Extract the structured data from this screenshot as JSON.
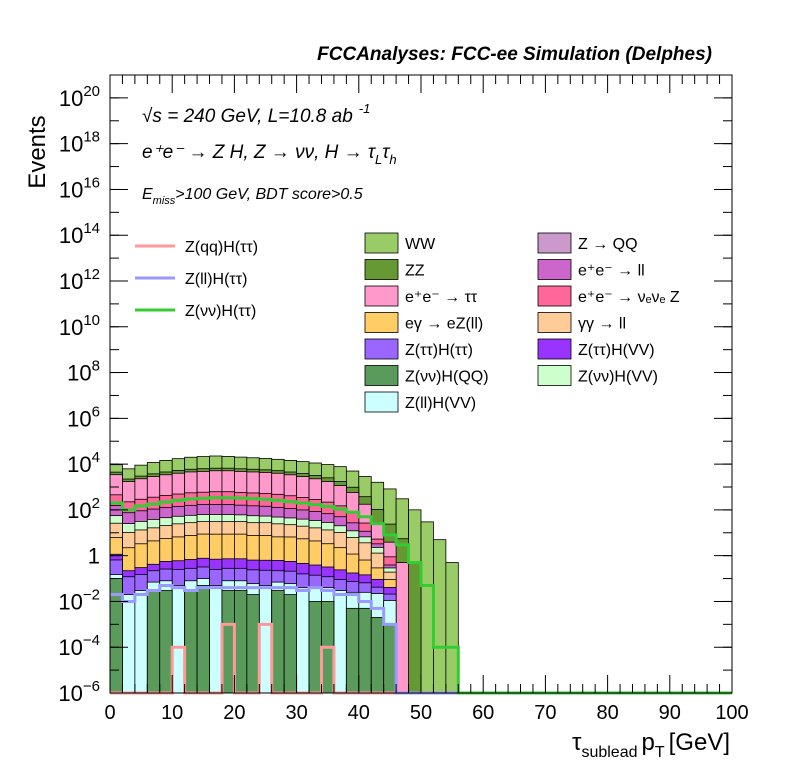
{
  "chart_data": {
    "type": "area",
    "title": "FCCAnalyses: FCC-ee Simulation (Delphes)",
    "xlabel_main": "τ",
    "xlabel_sub": "sublead",
    "xlabel_var": "p",
    "xlabel_var_sub": "T",
    "xlabel_unit": "[GeV]",
    "ylabel": "Events",
    "xlim": [
      0,
      100
    ],
    "ylog": true,
    "ylim": [
      1e-06,
      1e+21
    ],
    "x_tick_labels": [
      "0",
      "10",
      "20",
      "30",
      "40",
      "50",
      "60",
      "70",
      "80",
      "90",
      "100"
    ],
    "y_tick_labels": [
      {
        "base": "10",
        "exp": "−6",
        "value": 1e-06
      },
      {
        "base": "10",
        "exp": "−4",
        "value": 0.0001
      },
      {
        "base": "10",
        "exp": "−2",
        "value": 0.01
      },
      {
        "base": "1",
        "exp": "",
        "value": 1
      },
      {
        "base": "10",
        "exp": "2",
        "value": 100.0
      },
      {
        "base": "10",
        "exp": "4",
        "value": 10000.0
      },
      {
        "base": "10",
        "exp": "6",
        "value": 1000000.0
      },
      {
        "base": "10",
        "exp": "8",
        "value": 100000000.0
      },
      {
        "base": "10",
        "exp": "10",
        "value": 10000000000.0
      },
      {
        "base": "10",
        "exp": "12",
        "value": 1000000000000.0
      },
      {
        "base": "10",
        "exp": "14",
        "value": 100000000000000.0
      },
      {
        "base": "10",
        "exp": "16",
        "value": 1e+16
      },
      {
        "base": "10",
        "exp": "18",
        "value": 1e+18
      },
      {
        "base": "10",
        "exp": "20",
        "value": 1e+20
      }
    ],
    "annotations": {
      "sqrt_s_symbol": "√s",
      "energy_lumi_text": " = 240 GeV, L=10.8 ab",
      "lumi_exp": "-1",
      "process_text": "e⁺e⁻ → Z H, Z → νν, H → τ",
      "process_sub1": "L",
      "process_tau2": "τ",
      "process_sub2": "h",
      "selection_E": "E",
      "selection_sub": "miss",
      "selection_rest": ">100 GeV, BDT score>0.5"
    },
    "bin_edges_step": 2,
    "stacked_series": [
      {
        "name": "Z(νν)H(QQ)",
        "color": "#5a9a5a",
        "values": [
          0.1,
          0,
          0,
          0.03,
          0.03,
          0,
          0.03,
          0.05,
          0,
          0.03,
          0.03,
          0.02,
          0,
          0.03,
          0.02,
          0,
          0.01,
          0.01,
          0,
          0.005,
          0.005,
          0.002,
          0.001,
          0,
          0,
          0,
          0,
          0,
          0,
          0,
          0,
          0,
          0,
          0,
          0,
          0,
          0,
          0,
          0,
          0,
          0,
          0,
          0,
          0,
          0,
          0,
          0,
          0,
          0,
          0
        ]
      },
      {
        "name": "Z(ll)H(VV)",
        "color": "#ccffff",
        "values": [
          0.05,
          0.02,
          0.03,
          0.04,
          0.05,
          0.05,
          0.05,
          0.05,
          0.05,
          0.05,
          0.05,
          0.04,
          0.05,
          0.04,
          0.04,
          0.04,
          0.03,
          0.03,
          0.03,
          0.02,
          0.02,
          0.02,
          0.01,
          0,
          0,
          0,
          0,
          0,
          0,
          0,
          0,
          0,
          0,
          0,
          0,
          0,
          0,
          0,
          0,
          0,
          0,
          0,
          0,
          0,
          0,
          0,
          0,
          0,
          0,
          0
        ]
      },
      {
        "name": "Z(ττ)H(ττ)",
        "color": "#9966ff",
        "values": [
          0.5,
          0.1,
          0.12,
          0.15,
          0.18,
          0.2,
          0.2,
          0.22,
          0.2,
          0.2,
          0.2,
          0.18,
          0.18,
          0.15,
          0.15,
          0.12,
          0.1,
          0.08,
          0.06,
          0.05,
          0.04,
          0.02,
          0.01,
          0,
          0,
          0,
          0,
          0,
          0,
          0,
          0,
          0,
          0,
          0,
          0,
          0,
          0,
          0,
          0,
          0,
          0,
          0,
          0,
          0,
          0,
          0,
          0,
          0,
          0,
          0
        ]
      },
      {
        "name": "Z(ττ)H(VV)",
        "color": "#9933ff",
        "values": [
          0.5,
          0.1,
          0.15,
          0.2,
          0.3,
          0.35,
          0.4,
          0.45,
          0.45,
          0.45,
          0.45,
          0.4,
          0.4,
          0.4,
          0.35,
          0.3,
          0.25,
          0.2,
          0.15,
          0.1,
          0.08,
          0.05,
          0.02,
          0,
          0,
          0,
          0,
          0,
          0,
          0,
          0,
          0,
          0,
          0,
          0,
          0,
          0,
          0,
          0,
          0,
          0,
          0,
          0,
          0,
          0,
          0,
          0,
          0,
          0,
          0
        ]
      },
      {
        "name": "eγ → eZ(ll)",
        "color": "#ffcc66",
        "values": [
          5,
          2,
          3,
          4,
          5,
          6,
          7,
          8,
          8,
          8,
          8,
          7,
          7,
          6,
          6,
          5,
          4,
          3,
          2,
          1,
          0.5,
          0.2,
          0.05,
          0,
          0,
          0,
          0,
          0,
          0,
          0,
          0,
          0,
          0,
          0,
          0,
          0,
          0,
          0,
          0,
          0,
          0,
          0,
          0,
          0,
          0,
          0,
          0,
          0,
          0,
          0
        ]
      },
      {
        "name": "γγ → ll",
        "color": "#ffcc99",
        "values": [
          20,
          8,
          10,
          12,
          15,
          18,
          20,
          22,
          22,
          22,
          22,
          20,
          20,
          18,
          16,
          14,
          12,
          10,
          8,
          5,
          3,
          1,
          0.1,
          0,
          0,
          0,
          0,
          0,
          0,
          0,
          0,
          0,
          0,
          0,
          0,
          0,
          0,
          0,
          0,
          0,
          0,
          0,
          0,
          0,
          0,
          0,
          0,
          0,
          0,
          0
        ]
      },
      {
        "name": "Z(νν)H(VV)",
        "color": "#ccffcc",
        "values": [
          30,
          15,
          18,
          22,
          25,
          28,
          30,
          32,
          32,
          32,
          30,
          28,
          26,
          24,
          22,
          20,
          18,
          15,
          10,
          6,
          3,
          1,
          0.1,
          0,
          0,
          0,
          0,
          0,
          0,
          0,
          0,
          0,
          0,
          0,
          0,
          0,
          0,
          0,
          0,
          0,
          0,
          0,
          0,
          0,
          0,
          0,
          0,
          0,
          0,
          0
        ]
      },
      {
        "name": "e⁺e⁻ → ll",
        "color": "#cc66cc",
        "values": [
          100,
          50,
          60,
          70,
          80,
          90,
          100,
          110,
          110,
          110,
          100,
          95,
          90,
          80,
          70,
          60,
          50,
          40,
          30,
          15,
          5,
          1,
          0.1,
          0,
          0,
          0,
          0,
          0,
          0,
          0,
          0,
          0,
          0,
          0,
          0,
          0,
          0,
          0,
          0,
          0,
          0,
          0,
          0,
          0,
          0,
          0,
          0,
          0,
          0,
          0
        ]
      },
      {
        "name": "e⁺e⁻ → νₑνₑ Z",
        "color": "#ff6699",
        "values": [
          300,
          150,
          200,
          250,
          300,
          350,
          400,
          420,
          450,
          450,
          420,
          400,
          380,
          350,
          300,
          250,
          200,
          150,
          100,
          50,
          15,
          2,
          0.5,
          0,
          0,
          0,
          0,
          0,
          0,
          0,
          0,
          0,
          0,
          0,
          0,
          0,
          0,
          0,
          0,
          0,
          0,
          0,
          0,
          0,
          0,
          0,
          0,
          0,
          0,
          0
        ]
      },
      {
        "name": "e⁺e⁻ → ττ",
        "color": "#ff99cc",
        "values": [
          3000,
          1500,
          2000,
          2500,
          3000,
          3500,
          4000,
          4200,
          4500,
          4500,
          4200,
          4000,
          3800,
          3500,
          3000,
          2500,
          2000,
          1500,
          1000,
          500,
          150,
          20,
          3,
          0.5,
          0,
          0,
          0,
          0,
          0,
          0,
          0,
          0,
          0,
          0,
          0,
          0,
          0,
          0,
          0,
          0,
          0,
          0,
          0,
          0,
          0,
          0,
          0,
          0,
          0,
          0
        ]
      },
      {
        "name": "ZZ",
        "color": "#669933",
        "values": [
          1000,
          500,
          700,
          900,
          1100,
          1300,
          1400,
          1500,
          1500,
          1500,
          1450,
          1400,
          1300,
          1200,
          1100,
          1000,
          900,
          800,
          600,
          400,
          200,
          80,
          20,
          5,
          0.5,
          0,
          0,
          0,
          0,
          0,
          0,
          0,
          0,
          0,
          0,
          0,
          0,
          0,
          0,
          0,
          0,
          0,
          0,
          0,
          0,
          0,
          0,
          0,
          0,
          0
        ]
      },
      {
        "name": "WW",
        "color": "#99cc66",
        "values": [
          5000,
          4000,
          6000,
          8000,
          10000,
          12000,
          14000,
          15000,
          16000,
          15000,
          14000,
          13000,
          12000,
          11000,
          10000,
          9000,
          8000,
          7000,
          6000,
          4000,
          2500,
          1500,
          800,
          300,
          100,
          30,
          5,
          0.5,
          0,
          0,
          0,
          0,
          0,
          0,
          0,
          0,
          0,
          0,
          0,
          0,
          0,
          0,
          0,
          0,
          0,
          0,
          0,
          0,
          0,
          0
        ]
      }
    ],
    "legend_empty_entries": [
      {
        "name": "Z → QQ",
        "color": "#cc99cc"
      }
    ],
    "overlay_series": [
      {
        "name": "Z(qq)H(ττ)",
        "color": "#ff9999",
        "values": [
          0,
          0,
          0,
          0,
          0,
          0.0001,
          0,
          0,
          0,
          0.001,
          0,
          0,
          0.001,
          0,
          0,
          0,
          0,
          0.0001,
          0,
          0,
          0,
          0,
          0,
          0,
          0,
          0,
          0,
          0,
          0,
          0,
          0,
          0,
          0,
          0,
          0,
          0,
          0,
          0,
          0,
          0,
          0,
          0,
          0,
          0,
          0,
          0,
          0,
          0,
          0,
          0
        ]
      },
      {
        "name": "Z(ll)H(ττ)",
        "color": "#9999ff",
        "values": [
          0.02,
          0.01,
          0.02,
          0.03,
          0.05,
          0.04,
          0.03,
          0.04,
          0.04,
          0.04,
          0.04,
          0.04,
          0.04,
          0.04,
          0.04,
          0.03,
          0.04,
          0.03,
          0.02,
          0.02,
          0.01,
          0.005,
          0.001,
          0,
          0,
          0,
          0,
          0,
          0,
          0,
          0,
          0,
          0,
          0,
          0,
          0,
          0,
          0,
          0,
          0,
          0,
          0,
          0,
          0,
          0,
          0,
          0,
          0,
          0,
          0
        ]
      },
      {
        "name": "Z(νν)H(ττ)",
        "color": "#33cc33",
        "values": [
          200,
          100,
          150,
          180,
          220,
          260,
          300,
          320,
          340,
          340,
          330,
          310,
          290,
          260,
          230,
          200,
          170,
          140,
          110,
          80,
          50,
          25,
          8,
          3,
          0.5,
          0.05,
          0.0001,
          0.0001,
          0,
          0,
          0,
          0,
          0,
          0,
          0,
          0,
          0,
          0,
          0,
          0,
          0,
          0,
          0,
          0,
          0,
          0,
          0,
          0,
          0,
          0
        ]
      }
    ],
    "legend_layout": "top",
    "grid": false
  }
}
